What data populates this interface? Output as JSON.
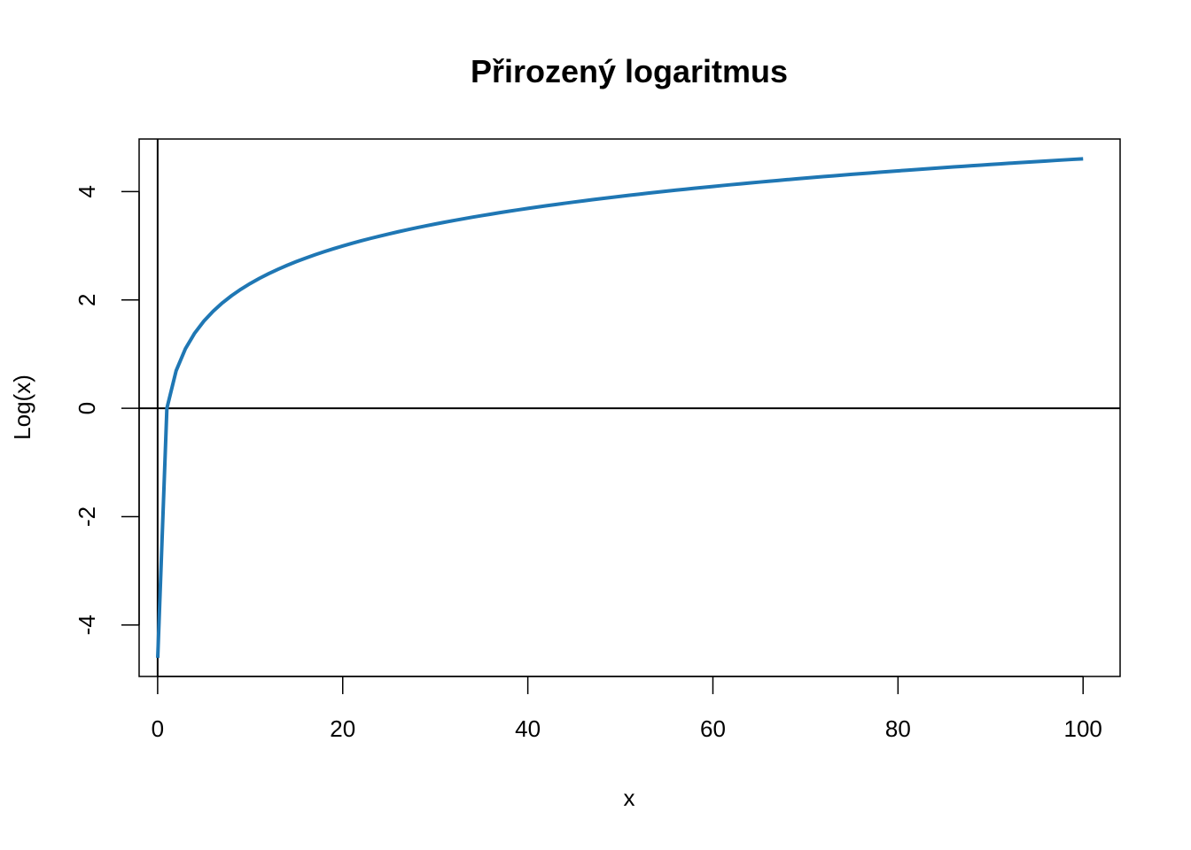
{
  "chart_data": {
    "type": "line",
    "title": "Přirozený logaritmus",
    "xlabel": "x",
    "ylabel": "Log(x)",
    "xlim": [
      -2,
      104
    ],
    "ylim": [
      -4.95,
      4.97
    ],
    "x_ticks": [
      0,
      20,
      40,
      60,
      80,
      100
    ],
    "x_tick_labels": [
      "0",
      "20",
      "40",
      "60",
      "80",
      "100"
    ],
    "y_ticks": [
      -4,
      -2,
      0,
      2,
      4
    ],
    "y_tick_labels": [
      "-4",
      "-2",
      "0",
      "2",
      "4"
    ],
    "grid": false,
    "reference_lines": {
      "horizontal": 0,
      "vertical": 0
    },
    "series": [
      {
        "function": "ln(x)",
        "x_range": [
          0.01,
          100
        ],
        "color": "#1f77b4"
      }
    ]
  }
}
